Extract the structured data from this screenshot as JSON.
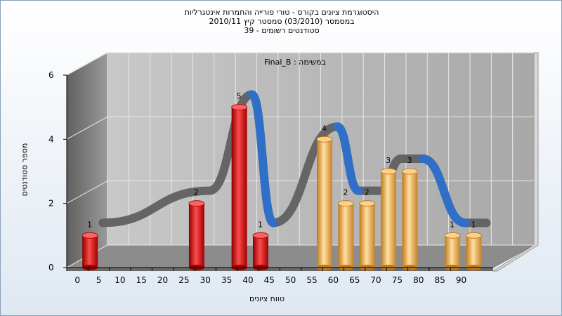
{
  "header": {
    "title_line1": "היסטוגרמת ציונים בקורס - טורי פורייה והתמרות אינטגרליות",
    "title_line2": "במסמסר (03/2010) סמסטר קיץ 2010/11",
    "title_line3": "סטודנטים רשומים - 39"
  },
  "chart_data": {
    "type": "bar",
    "title": "Final_B : במשימה",
    "xlabel": "טווח ציונים",
    "ylabel": "מספר סטודנטים",
    "x_ticks": [
      "0",
      "5",
      "10",
      "15",
      "20",
      "25",
      "30",
      "35",
      "40",
      "45",
      "50",
      "55",
      "60",
      "65",
      "70",
      "75",
      "80",
      "85",
      "90"
    ],
    "y_ticks": [
      0,
      2,
      4,
      6
    ],
    "ylim": [
      0,
      6
    ],
    "bars": [
      {
        "x": 0,
        "value": 1,
        "color": "#e01818"
      },
      {
        "x": 25,
        "value": 2,
        "color": "#e01818"
      },
      {
        "x": 35,
        "value": 5,
        "color": "#e01818"
      },
      {
        "x": 40,
        "value": 1,
        "color": "#e01818"
      },
      {
        "x": 55,
        "value": 4,
        "color": "#f0a840"
      },
      {
        "x": 60,
        "value": 2,
        "color": "#f0a840"
      },
      {
        "x": 65,
        "value": 2,
        "color": "#f0a840"
      },
      {
        "x": 70,
        "value": 3,
        "color": "#f0a840"
      },
      {
        "x": 75,
        "value": 3,
        "color": "#f0a840"
      },
      {
        "x": 85,
        "value": 1,
        "color": "#f0a840"
      },
      {
        "x": 90,
        "value": 1,
        "color": "#f0a840"
      }
    ],
    "curve_colors": {
      "up": "#606060",
      "down": "#2f6fc8"
    },
    "grid": true
  }
}
